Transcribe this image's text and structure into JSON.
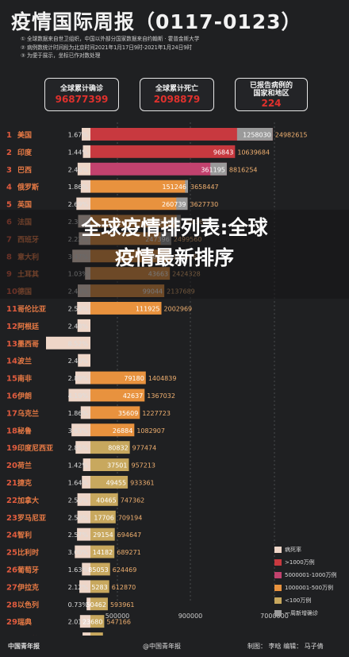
{
  "title": "疫情国际周报（0117-0123）",
  "notes": [
    "① 全球数据来自世卫组织，中国以外部分国家数据来自约翰斯 · 霍普金斯大学",
    "② 病例数统计时间段为北京时间2021年1月17日9时-2021年1月24日9时",
    "③ 为便于展示，坐标已作对数处理"
  ],
  "stats": [
    {
      "label": "全球累计确诊",
      "value": "96877399"
    },
    {
      "label": "全球累计死亡",
      "value": "2098879"
    },
    {
      "label": "已报告病例的国家和地区",
      "value": "224"
    }
  ],
  "banner": {
    "line1": "全球疫情排列表:全球",
    "line2": "疫情最新排序"
  },
  "colors": {
    "gt1000": "#c8393f",
    "r5000_10000": "#c2426e",
    "r1000_5000": "#e8923e",
    "lt100": "#c8a85e",
    "rate": "#eed6c8",
    "weekly": "#9a9a9a"
  },
  "chart_data": {
    "type": "bar",
    "x_axis_ticks": [
      "500000",
      "900000",
      "7000000"
    ],
    "legend": [
      "病死率",
      ">1000万例",
      "5000001-1000万例",
      "1000001-500万例",
      "<100万例",
      "一周新增确诊"
    ],
    "countries": [
      {
        "rank": "1",
        "name": "美国",
        "rate": "1.67%",
        "weekly": "1258030",
        "total": "24982615",
        "tier": "gt1000"
      },
      {
        "rank": "2",
        "name": "印度",
        "rate": "1.44%",
        "weekly": "96843",
        "total": "10639684",
        "tier": "gt1000"
      },
      {
        "rank": "3",
        "name": "巴西",
        "rate": "2.46%",
        "weekly": "361195",
        "total": "8816254",
        "tier": "r5000_10000"
      },
      {
        "rank": "4",
        "name": "俄罗斯",
        "rate": "1.86%",
        "weekly": "151246",
        "total": "3658447",
        "tier": "r1000_5000"
      },
      {
        "rank": "5",
        "name": "英国",
        "rate": "2.69%",
        "weekly": "260739",
        "total": "3627730",
        "tier": "r1000_5000"
      },
      {
        "rank": "6",
        "name": "法国",
        "rate": "2.36%",
        "weekly": "161936",
        "total": "3093619",
        "tier": "r1000_5000"
      },
      {
        "rank": "7",
        "name": "西班牙",
        "rate": "2.22%",
        "weekly": "247396",
        "total": "2499560",
        "tier": "r1000_5000"
      },
      {
        "rank": "8",
        "name": "意大利",
        "rate": "3.47%",
        "weekly": "86452",
        "total": "2455185",
        "tier": "r1000_5000"
      },
      {
        "rank": "9",
        "name": "土耳其",
        "rate": "1.03%",
        "weekly": "43663",
        "total": "2424328",
        "tier": "r1000_5000"
      },
      {
        "rank": "10",
        "name": "德国",
        "rate": "2.43%",
        "weekly": "99044",
        "total": "2137689",
        "tier": "r1000_5000"
      },
      {
        "rank": "11",
        "name": "哥伦比亚",
        "rate": "2.55%",
        "weekly": "111925",
        "total": "2002969",
        "tier": "r1000_5000"
      },
      {
        "rank": "12",
        "name": "阿根廷",
        "rate": "2.48%",
        "weekly": "",
        "total": "",
        "tier": "r1000_5000"
      },
      {
        "rank": "13",
        "name": "墨西哥",
        "rate": "8.52%",
        "weekly": "",
        "total": "",
        "tier": "r1000_5000"
      },
      {
        "rank": "14",
        "name": "波兰",
        "rate": "2.40%",
        "weekly": "",
        "total": "",
        "tier": "r1000_5000"
      },
      {
        "rank": "15",
        "name": "南非",
        "rate": "2.89%",
        "weekly": "79180",
        "total": "1404839",
        "tier": "r1000_5000"
      },
      {
        "rank": "16",
        "name": "伊朗",
        "rate": "4.19%",
        "weekly": "42637",
        "total": "1367032",
        "tier": "r1000_5000"
      },
      {
        "rank": "17",
        "name": "乌克兰",
        "rate": "1.86%",
        "weekly": "35609",
        "total": "1227723",
        "tier": "r1000_5000"
      },
      {
        "rank": "18",
        "name": "秘鲁",
        "rate": "3.63%",
        "weekly": "26884",
        "total": "1082907",
        "tier": "r1000_5000"
      },
      {
        "rank": "19",
        "name": "印度尼西亚",
        "rate": "2.85%",
        "weekly": "80832",
        "total": "977474",
        "tier": "lt100"
      },
      {
        "rank": "20",
        "name": "荷兰",
        "rate": "1.42%",
        "weekly": "37501",
        "total": "957213",
        "tier": "lt100"
      },
      {
        "rank": "21",
        "name": "捷克",
        "rate": "1.64%",
        "weekly": "49455",
        "total": "933361",
        "tier": "lt100"
      },
      {
        "rank": "22",
        "name": "加拿大",
        "rate": "2.50%",
        "weekly": "40465",
        "total": "747362",
        "tier": "lt100"
      },
      {
        "rank": "23",
        "name": "罗马尼亚",
        "rate": "2.50%",
        "weekly": "17706",
        "total": "709194",
        "tier": "lt100"
      },
      {
        "rank": "24",
        "name": "智利",
        "rate": "2.57%",
        "weekly": "29154",
        "total": "694647",
        "tier": "lt100"
      },
      {
        "rank": "25",
        "name": "比利时",
        "rate": "3.00%",
        "weekly": "14182",
        "total": "689271",
        "tier": "lt100"
      },
      {
        "rank": "26",
        "name": "葡萄牙",
        "rate": "1.63%",
        "weekly": "85053",
        "total": "624469",
        "tier": "lt100"
      },
      {
        "rank": "27",
        "name": "伊拉克",
        "rate": "2.12%",
        "weekly": "5283",
        "total": "612870",
        "tier": "lt100"
      },
      {
        "rank": "28",
        "name": "以色列",
        "rate": "0.73%",
        "weekly": "50462",
        "total": "593961",
        "tier": "lt100"
      },
      {
        "rank": "29",
        "name": "瑞典",
        "rate": "2.01%",
        "weekly": "23680",
        "total": "547166",
        "tier": "lt100"
      },
      {
        "rank": "30",
        "name": "孟加拉国",
        "rate": "1.51%",
        "weekly": "4263",
        "total": "531326",
        "tier": "lt100"
      }
    ]
  },
  "footer": {
    "logo": "中国青年报",
    "handle": "@中国青年报",
    "credits": "制图： 李晗   编辑： 马子倩"
  }
}
